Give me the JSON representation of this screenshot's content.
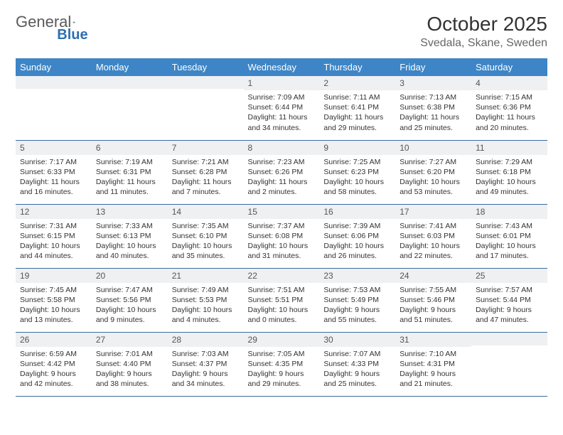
{
  "brand": {
    "text1": "General",
    "text2": "Blue"
  },
  "title": {
    "month": "October 2025",
    "location": "Svedala, Skane, Sweden"
  },
  "colors": {
    "header_bg": "#3d85c6",
    "header_fg": "#ffffff",
    "daynum_bg": "#eef0f2",
    "row_border": "#3d6a9a",
    "logo_gray": "#5a5a5a",
    "logo_blue": "#2f6fb0"
  },
  "dayNames": [
    "Sunday",
    "Monday",
    "Tuesday",
    "Wednesday",
    "Thursday",
    "Friday",
    "Saturday"
  ],
  "weeks": [
    [
      {
        "n": "",
        "sr": "",
        "ss": "",
        "dl": ""
      },
      {
        "n": "",
        "sr": "",
        "ss": "",
        "dl": ""
      },
      {
        "n": "",
        "sr": "",
        "ss": "",
        "dl": ""
      },
      {
        "n": "1",
        "sr": "7:09 AM",
        "ss": "6:44 PM",
        "dl": "11 hours and 34 minutes."
      },
      {
        "n": "2",
        "sr": "7:11 AM",
        "ss": "6:41 PM",
        "dl": "11 hours and 29 minutes."
      },
      {
        "n": "3",
        "sr": "7:13 AM",
        "ss": "6:38 PM",
        "dl": "11 hours and 25 minutes."
      },
      {
        "n": "4",
        "sr": "7:15 AM",
        "ss": "6:36 PM",
        "dl": "11 hours and 20 minutes."
      }
    ],
    [
      {
        "n": "5",
        "sr": "7:17 AM",
        "ss": "6:33 PM",
        "dl": "11 hours and 16 minutes."
      },
      {
        "n": "6",
        "sr": "7:19 AM",
        "ss": "6:31 PM",
        "dl": "11 hours and 11 minutes."
      },
      {
        "n": "7",
        "sr": "7:21 AM",
        "ss": "6:28 PM",
        "dl": "11 hours and 7 minutes."
      },
      {
        "n": "8",
        "sr": "7:23 AM",
        "ss": "6:26 PM",
        "dl": "11 hours and 2 minutes."
      },
      {
        "n": "9",
        "sr": "7:25 AM",
        "ss": "6:23 PM",
        "dl": "10 hours and 58 minutes."
      },
      {
        "n": "10",
        "sr": "7:27 AM",
        "ss": "6:20 PM",
        "dl": "10 hours and 53 minutes."
      },
      {
        "n": "11",
        "sr": "7:29 AM",
        "ss": "6:18 PM",
        "dl": "10 hours and 49 minutes."
      }
    ],
    [
      {
        "n": "12",
        "sr": "7:31 AM",
        "ss": "6:15 PM",
        "dl": "10 hours and 44 minutes."
      },
      {
        "n": "13",
        "sr": "7:33 AM",
        "ss": "6:13 PM",
        "dl": "10 hours and 40 minutes."
      },
      {
        "n": "14",
        "sr": "7:35 AM",
        "ss": "6:10 PM",
        "dl": "10 hours and 35 minutes."
      },
      {
        "n": "15",
        "sr": "7:37 AM",
        "ss": "6:08 PM",
        "dl": "10 hours and 31 minutes."
      },
      {
        "n": "16",
        "sr": "7:39 AM",
        "ss": "6:06 PM",
        "dl": "10 hours and 26 minutes."
      },
      {
        "n": "17",
        "sr": "7:41 AM",
        "ss": "6:03 PM",
        "dl": "10 hours and 22 minutes."
      },
      {
        "n": "18",
        "sr": "7:43 AM",
        "ss": "6:01 PM",
        "dl": "10 hours and 17 minutes."
      }
    ],
    [
      {
        "n": "19",
        "sr": "7:45 AM",
        "ss": "5:58 PM",
        "dl": "10 hours and 13 minutes."
      },
      {
        "n": "20",
        "sr": "7:47 AM",
        "ss": "5:56 PM",
        "dl": "10 hours and 9 minutes."
      },
      {
        "n": "21",
        "sr": "7:49 AM",
        "ss": "5:53 PM",
        "dl": "10 hours and 4 minutes."
      },
      {
        "n": "22",
        "sr": "7:51 AM",
        "ss": "5:51 PM",
        "dl": "10 hours and 0 minutes."
      },
      {
        "n": "23",
        "sr": "7:53 AM",
        "ss": "5:49 PM",
        "dl": "9 hours and 55 minutes."
      },
      {
        "n": "24",
        "sr": "7:55 AM",
        "ss": "5:46 PM",
        "dl": "9 hours and 51 minutes."
      },
      {
        "n": "25",
        "sr": "7:57 AM",
        "ss": "5:44 PM",
        "dl": "9 hours and 47 minutes."
      }
    ],
    [
      {
        "n": "26",
        "sr": "6:59 AM",
        "ss": "4:42 PM",
        "dl": "9 hours and 42 minutes."
      },
      {
        "n": "27",
        "sr": "7:01 AM",
        "ss": "4:40 PM",
        "dl": "9 hours and 38 minutes."
      },
      {
        "n": "28",
        "sr": "7:03 AM",
        "ss": "4:37 PM",
        "dl": "9 hours and 34 minutes."
      },
      {
        "n": "29",
        "sr": "7:05 AM",
        "ss": "4:35 PM",
        "dl": "9 hours and 29 minutes."
      },
      {
        "n": "30",
        "sr": "7:07 AM",
        "ss": "4:33 PM",
        "dl": "9 hours and 25 minutes."
      },
      {
        "n": "31",
        "sr": "7:10 AM",
        "ss": "4:31 PM",
        "dl": "9 hours and 21 minutes."
      },
      {
        "n": "",
        "sr": "",
        "ss": "",
        "dl": ""
      }
    ]
  ],
  "labels": {
    "sunrise": "Sunrise:",
    "sunset": "Sunset:",
    "daylight": "Daylight:"
  }
}
